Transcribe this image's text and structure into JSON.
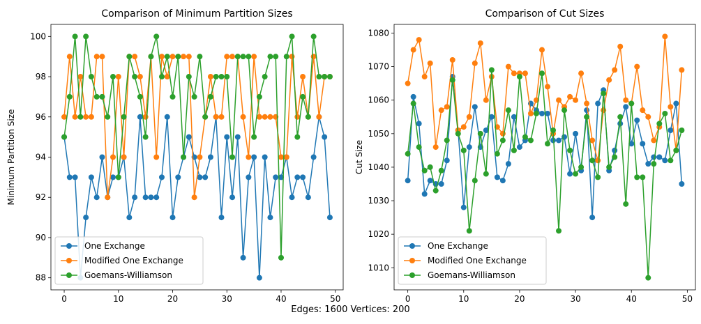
{
  "footer": "Edges: 1600 Vertices: 200",
  "chart_data": [
    {
      "type": "line",
      "title": "Comparison of Minimum Partition Sizes",
      "xlabel": "",
      "ylabel": "Minimum Partition Size",
      "xlim": [
        -2.45,
        51.45
      ],
      "ylim": [
        87.4,
        100.6
      ],
      "xticks": [
        0,
        10,
        20,
        30,
        40,
        50
      ],
      "yticks": [
        88,
        90,
        92,
        94,
        96,
        98,
        100
      ],
      "legend": "lower-left",
      "x": [
        0,
        1,
        2,
        3,
        4,
        5,
        6,
        7,
        8,
        9,
        10,
        11,
        12,
        13,
        14,
        15,
        16,
        17,
        18,
        19,
        20,
        21,
        22,
        23,
        24,
        25,
        26,
        27,
        28,
        29,
        30,
        31,
        32,
        33,
        34,
        35,
        36,
        37,
        38,
        39,
        40,
        41,
        42,
        43,
        44,
        45,
        46,
        47,
        48,
        49
      ],
      "series": [
        {
          "name": "One Exchange",
          "color": "#1f77b4",
          "values": [
            95,
            93,
            93,
            88,
            91,
            93,
            92,
            94,
            92,
            93,
            93,
            94,
            91,
            92,
            96,
            92,
            92,
            92,
            93,
            96,
            91,
            93,
            94,
            95,
            94,
            93,
            93,
            94,
            96,
            91,
            95,
            92,
            95,
            89,
            93,
            94,
            88,
            94,
            91,
            93,
            93,
            94,
            92,
            93,
            93,
            92,
            94,
            96,
            95,
            91
          ]
        },
        {
          "name": "Modified One Exchange",
          "color": "#ff7f0e",
          "values": [
            96,
            99,
            96,
            98,
            96,
            96,
            99,
            99,
            92,
            94,
            98,
            94,
            99,
            99,
            98,
            96,
            99,
            94,
            99,
            98,
            99,
            99,
            99,
            99,
            92,
            94,
            96,
            98,
            96,
            96,
            99,
            99,
            99,
            96,
            94,
            99,
            96,
            96,
            96,
            96,
            94,
            94,
            99,
            96,
            98,
            96,
            99,
            96,
            98,
            98
          ]
        },
        {
          "name": "Goemans-Williamson",
          "color": "#2ca02c",
          "values": [
            95,
            97,
            100,
            96,
            100,
            98,
            97,
            97,
            96,
            98,
            93,
            96,
            99,
            98,
            97,
            95,
            99,
            100,
            98,
            99,
            97,
            99,
            94,
            98,
            97,
            99,
            96,
            97,
            98,
            98,
            98,
            94,
            99,
            99,
            99,
            95,
            97,
            98,
            99,
            99,
            89,
            99,
            100,
            95,
            97,
            96,
            100,
            98,
            98,
            98
          ]
        }
      ]
    },
    {
      "type": "line",
      "title": "Comparison of Cut Sizes",
      "xlabel": "",
      "ylabel": "Cut Size",
      "xlim": [
        -2.45,
        51.45
      ],
      "ylim": [
        1003.4,
        1082.6
      ],
      "xticks": [
        0,
        10,
        20,
        30,
        40,
        50
      ],
      "yticks": [
        1010,
        1020,
        1030,
        1040,
        1050,
        1060,
        1070,
        1080
      ],
      "legend": "lower-left",
      "x": [
        0,
        1,
        2,
        3,
        4,
        5,
        6,
        7,
        8,
        9,
        10,
        11,
        12,
        13,
        14,
        15,
        16,
        17,
        18,
        19,
        20,
        21,
        22,
        23,
        24,
        25,
        26,
        27,
        28,
        29,
        30,
        31,
        32,
        33,
        34,
        35,
        36,
        37,
        38,
        39,
        40,
        41,
        42,
        43,
        44,
        45,
        46,
        47,
        48,
        49
      ],
      "series": [
        {
          "name": "One Exchange",
          "color": "#1f77b4",
          "values": [
            1036,
            1061,
            1053,
            1032,
            1036,
            1035,
            1035,
            1042,
            1067,
            1051,
            1028,
            1046,
            1058,
            1046,
            1051,
            1055,
            1037,
            1036,
            1041,
            1055,
            1046,
            1048,
            1059,
            1057,
            1056,
            1056,
            1048,
            1048,
            1049,
            1038,
            1050,
            1039,
            1057,
            1025,
            1059,
            1063,
            1039,
            1045,
            1053,
            1058,
            1047,
            1054,
            1047,
            1041,
            1043,
            1043,
            1042,
            1051,
            1059,
            1035
          ]
        },
        {
          "name": "Modified One Exchange",
          "color": "#ff7f0e",
          "values": [
            1065,
            1075,
            1078,
            1067,
            1071,
            1046,
            1057,
            1058,
            1072,
            1051,
            1052,
            1055,
            1071,
            1077,
            1060,
            1067,
            1052,
            1050,
            1070,
            1068,
            1068,
            1068,
            1056,
            1060,
            1075,
            1064,
            1050,
            1060,
            1058,
            1061,
            1060,
            1068,
            1059,
            1048,
            1042,
            1057,
            1066,
            1069,
            1076,
            1060,
            1059,
            1070,
            1057,
            1055,
            1048,
            1052,
            1079,
            1058,
            1045,
            1069
          ]
        },
        {
          "name": "Goemans-Williamson",
          "color": "#2ca02c",
          "values": [
            1044,
            1059,
            1046,
            1039,
            1040,
            1033,
            1039,
            1048,
            1066,
            1050,
            1045,
            1021,
            1036,
            1050,
            1038,
            1069,
            1044,
            1048,
            1057,
            1045,
            1067,
            1049,
            1048,
            1056,
            1068,
            1047,
            1051,
            1021,
            1057,
            1045,
            1038,
            1040,
            1055,
            1042,
            1037,
            1062,
            1040,
            1043,
            1055,
            1029,
            1059,
            1037,
            1037,
            1007,
            1041,
            1053,
            1056,
            1042,
            1045,
            1051
          ]
        }
      ]
    }
  ]
}
